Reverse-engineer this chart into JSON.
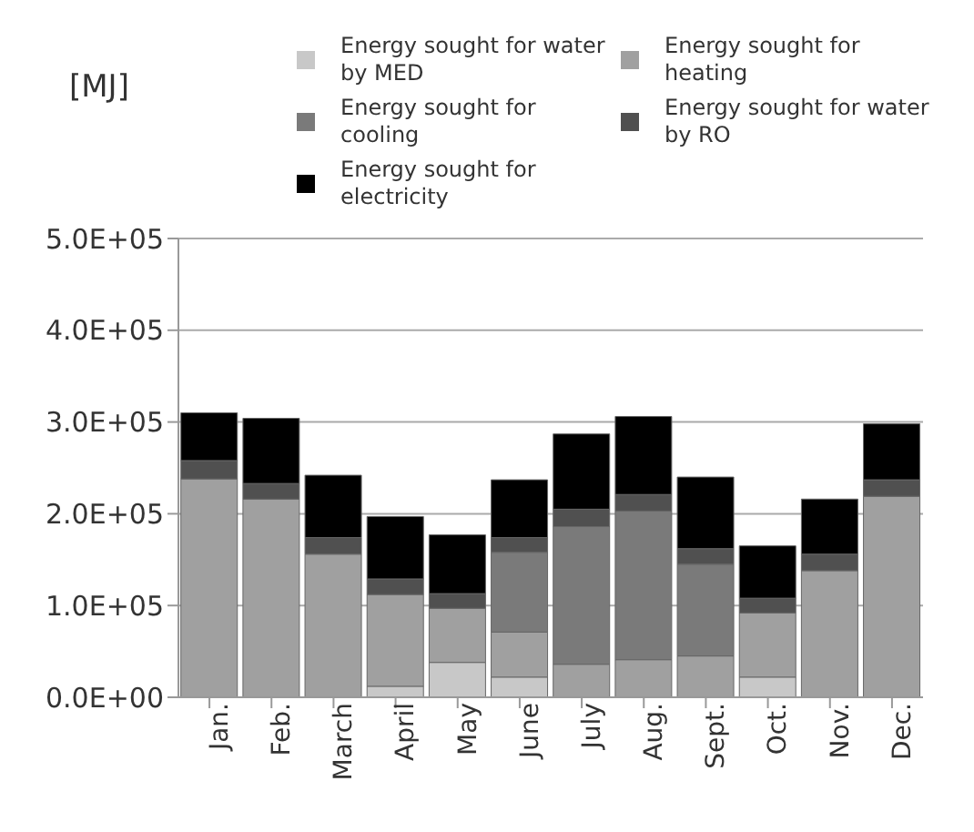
{
  "chart_data": {
    "type": "bar",
    "stacked": true,
    "ylabel": "[MJ]",
    "categories": [
      "Jan.",
      "Feb.",
      "March",
      "April",
      "May",
      "June",
      "July",
      "Aug.",
      "Sept.",
      "Oct.",
      "Nov.",
      "Dec."
    ],
    "series": [
      {
        "name": "Energy sought for water by MED",
        "color": "#c8c8c8",
        "values": [
          0,
          0,
          0,
          12000,
          38000,
          22000,
          0,
          0,
          0,
          22000,
          0,
          0
        ]
      },
      {
        "name": "Energy sought for heating",
        "color": "#a0a0a0",
        "values": [
          238000,
          216000,
          156000,
          100000,
          59000,
          49000,
          36000,
          41000,
          45000,
          70000,
          138000,
          219000
        ]
      },
      {
        "name": "Energy sought for cooling",
        "color": "#7a7a7a",
        "values": [
          0,
          0,
          0,
          0,
          0,
          87000,
          150000,
          162000,
          100000,
          0,
          0,
          0
        ]
      },
      {
        "name": "Energy sought for water by RO",
        "color": "#505050",
        "values": [
          20000,
          17000,
          18000,
          17000,
          16000,
          16000,
          19000,
          18000,
          17000,
          16000,
          18000,
          18000
        ]
      },
      {
        "name": "Energy sought for electricity",
        "color": "#000000",
        "values": [
          52000,
          71000,
          68000,
          68000,
          64000,
          63000,
          82000,
          85000,
          78000,
          57000,
          60000,
          61000
        ]
      }
    ],
    "ylim": [
      0,
      500000
    ],
    "yticks": [
      {
        "value": 0,
        "label": "0.0E+00"
      },
      {
        "value": 100000,
        "label": "1.0E+05"
      },
      {
        "value": 200000,
        "label": "2.0E+05"
      },
      {
        "value": 300000,
        "label": "3.0E+05"
      },
      {
        "value": 400000,
        "label": "4.0E+05"
      },
      {
        "value": 500000,
        "label": "5.0E+05"
      }
    ],
    "grid": "y",
    "legend": "top"
  }
}
